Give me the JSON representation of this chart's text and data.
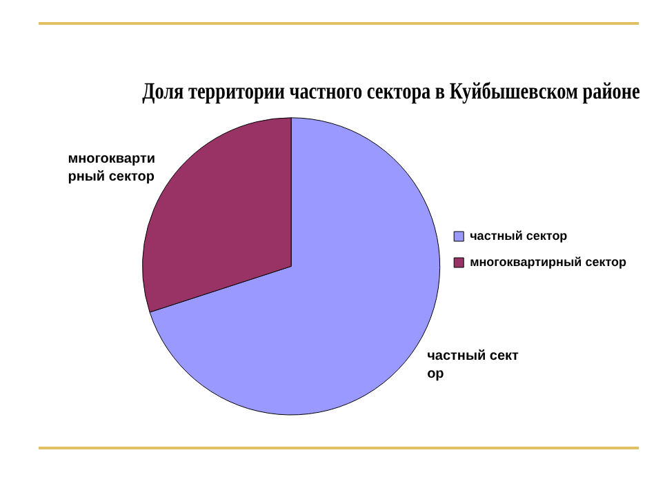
{
  "chart_data": {
    "type": "pie",
    "title": "Доля территории частного сектора в Куйбышевском районе",
    "categories": [
      "частный сектор",
      "многоквартирный сектор"
    ],
    "values": [
      70,
      30
    ],
    "colors": [
      "#9999ff",
      "#993366"
    ],
    "legend": "right"
  }
}
